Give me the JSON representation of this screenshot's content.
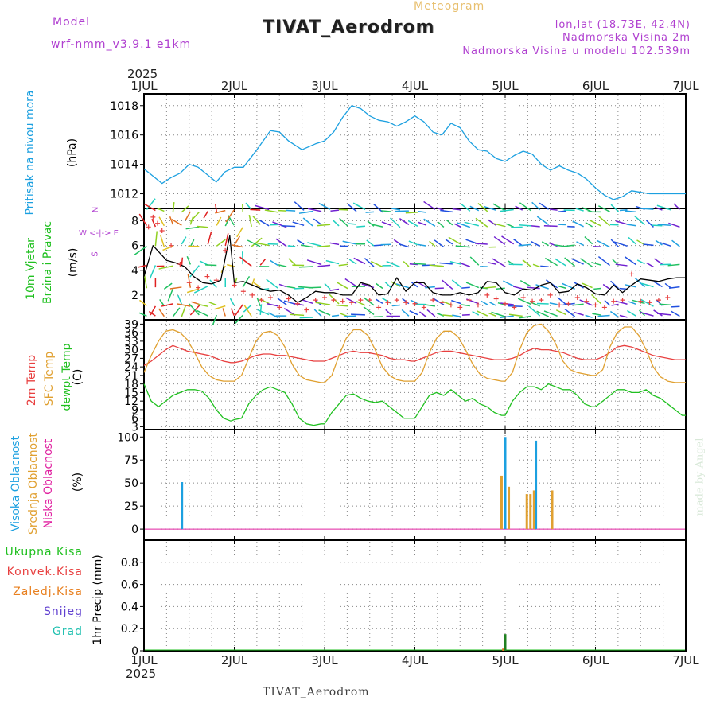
{
  "header": {
    "model_label": "Model",
    "model_name": "wrf-nmm_v3.9.1  e1km",
    "title": "TIVAT_Aerodrom",
    "meteogram": "Meteogram",
    "lonlat": "lon,lat (18.73E, 42.4N)",
    "elevation": "Nadmorska Visina 2m",
    "model_elevation": "Nadmorska Visina u modelu 102.539m",
    "year_top": "2025",
    "year_bottom": "2025",
    "footer": "TIVAT_Aerodrom",
    "credit": "made by Angel"
  },
  "colors": {
    "pressure": "#1ca0e0",
    "wind_label": "#20c020",
    "temp2m": "#e84040",
    "sfc": "#e0a030",
    "dewpt": "#20c020",
    "cloud_high": "#1ca0e0",
    "cloud_mid": "#e0a030",
    "cloud_low": "#e020a0",
    "purple": "#a040d0"
  },
  "chart_data": [
    {
      "type": "line",
      "panel": "pressure",
      "ylabel": "Pritisak na nivou mora",
      "unit": "(hPa)",
      "ylim": [
        1011,
        1018.8
      ],
      "yticks": [
        1012,
        1014,
        1016,
        1018
      ],
      "x_days": [
        0,
        0.1,
        0.2,
        0.3,
        0.4,
        0.5,
        0.6,
        0.7,
        0.8,
        0.9,
        1.0,
        1.1,
        1.25,
        1.4,
        1.5,
        1.6,
        1.75,
        1.9,
        2.0,
        2.1,
        2.2,
        2.3,
        2.4,
        2.5,
        2.6,
        2.7,
        2.8,
        2.9,
        3.0,
        3.1,
        3.2,
        3.3,
        3.4,
        3.5,
        3.6,
        3.7,
        3.8,
        3.9,
        4.0,
        4.1,
        4.2,
        4.3,
        4.4,
        4.5,
        4.6,
        4.7,
        4.8,
        4.9,
        5.0,
        5.1,
        5.2,
        5.3,
        5.4,
        5.5,
        5.6,
        5.7,
        5.8,
        5.9,
        6.0
      ],
      "values": [
        1013.7,
        1013.2,
        1012.7,
        1013.1,
        1013.4,
        1014.0,
        1013.8,
        1013.3,
        1012.8,
        1013.5,
        1013.8,
        1013.8,
        1015.0,
        1016.3,
        1016.2,
        1015.6,
        1015.0,
        1015.4,
        1015.6,
        1016.2,
        1017.2,
        1018.0,
        1017.8,
        1017.3,
        1017.0,
        1016.9,
        1016.6,
        1016.9,
        1017.3,
        1016.9,
        1016.2,
        1016.0,
        1016.8,
        1016.5,
        1015.6,
        1015.0,
        1014.9,
        1014.4,
        1014.2,
        1014.6,
        1014.9,
        1014.7,
        1014.0,
        1013.6,
        1013.9,
        1013.6,
        1013.4,
        1013.0,
        1012.4,
        1011.9,
        1011.6,
        1011.8,
        1012.2,
        1012.1,
        1012.0,
        1012.0,
        1012.0,
        1012.0,
        1012.0
      ]
    },
    {
      "type": "line",
      "panel": "wind",
      "ylabel": "10m Vjetar Brzina i Pravac",
      "ylabel_lines": [
        "10m Vjetar",
        "Brzina i Pravac"
      ],
      "unit": "(m/s)",
      "ylim": [
        0,
        9
      ],
      "yticks": [
        2,
        4,
        6,
        8
      ],
      "compass": "W <-|-> E",
      "compass_n": "N",
      "compass_s": "S",
      "x_days": [
        0,
        0.1,
        0.2,
        0.25,
        0.35,
        0.45,
        0.55,
        0.65,
        0.75,
        0.85,
        0.95,
        1.0,
        1.1,
        1.2,
        1.3,
        1.4,
        1.5,
        1.6,
        1.7,
        1.8,
        1.9,
        2.0,
        2.1,
        2.2,
        2.3,
        2.4,
        2.5,
        2.6,
        2.7,
        2.8,
        2.9,
        3.0,
        3.1,
        3.2,
        3.3,
        3.4,
        3.5,
        3.6,
        3.7,
        3.8,
        3.9,
        4.0,
        4.1,
        4.2,
        4.3,
        4.4,
        4.5,
        4.6,
        4.7,
        4.8,
        4.9,
        5.0,
        5.1,
        5.2,
        5.3,
        5.4,
        5.5,
        5.6,
        5.7,
        5.8,
        5.9,
        6.0
      ],
      "values": [
        3.5,
        6.0,
        5.2,
        4.8,
        4.6,
        4.3,
        3.5,
        3.0,
        2.9,
        3.2,
        6.8,
        3.0,
        3.1,
        2.8,
        2.5,
        2.3,
        2.4,
        2.0,
        1.4,
        1.8,
        2.3,
        2.2,
        2.2,
        2.0,
        2.0,
        3.0,
        2.8,
        2.0,
        2.1,
        3.4,
        2.3,
        3.0,
        3.0,
        2.2,
        2.0,
        2.0,
        2.2,
        2.0,
        2.2,
        3.1,
        3.0,
        2.2,
        2.0,
        2.5,
        2.4,
        2.8,
        3.0,
        2.2,
        2.3,
        2.9,
        2.6,
        2.1,
        2.0,
        2.8,
        2.2,
        2.8,
        3.3,
        3.2,
        3.1,
        3.3,
        3.4,
        3.4
      ],
      "gust_x": [
        0.05,
        0.1,
        0.15,
        0.2,
        0.3,
        0.4,
        0.5,
        0.6,
        0.7,
        0.8,
        0.9,
        1.0,
        1.1,
        1.2,
        1.3,
        1.4,
        1.5,
        1.6,
        1.7,
        1.8,
        1.9,
        2.0,
        2.1,
        2.2,
        2.3,
        2.4,
        2.5,
        2.6,
        2.7,
        2.8,
        2.9,
        3.0,
        3.1,
        3.2,
        3.3,
        3.4,
        3.5,
        3.6,
        3.7,
        3.8,
        3.9,
        4.0,
        4.1,
        4.2,
        4.3,
        4.4,
        4.5,
        4.6,
        4.7,
        4.8,
        4.9,
        5.0,
        5.1,
        5.2,
        5.3,
        5.4,
        5.5,
        5.6,
        5.7,
        5.8
      ],
      "gust_values": [
        7.5,
        8.3,
        7.8,
        7.2,
        6.0,
        4.5,
        3.0,
        2.6,
        3.5,
        3.2,
        5.6,
        2.8,
        2.3,
        2.0,
        1.6,
        1.8,
        1.0,
        1.7,
        1.3,
        0.8,
        1.6,
        1.8,
        1.6,
        1.5,
        1.4,
        1.6,
        1.6,
        1.0,
        1.4,
        1.6,
        1.4,
        1.3,
        1.0,
        1.6,
        1.4,
        1.2,
        1.0,
        1.6,
        1.2,
        2.0,
        1.7,
        1.3,
        1.0,
        1.8,
        1.5,
        1.6,
        2.0,
        1.2,
        1.3,
        1.8,
        1.5,
        1.2,
        1.0,
        1.5,
        1.6,
        3.7,
        1.5,
        1.4,
        1.6,
        1.8
      ]
    },
    {
      "type": "line",
      "panel": "temperature",
      "ylabel_lines": [
        "2m Temp",
        "SFC Temp",
        "dewpt Temp"
      ],
      "unit": "(C)",
      "ylim": [
        2,
        40.5
      ],
      "yticks": [
        3,
        6,
        9,
        12,
        15,
        18,
        21,
        24,
        27,
        30,
        33,
        36,
        39
      ],
      "x_days": [
        0,
        0.08,
        0.16,
        0.24,
        0.32,
        0.4,
        0.48,
        0.56,
        0.64,
        0.72,
        0.8,
        0.88,
        0.96,
        1.0,
        1.08,
        1.16,
        1.24,
        1.32,
        1.4,
        1.48,
        1.56,
        1.64,
        1.72,
        1.8,
        1.88,
        1.96,
        2.0,
        2.08,
        2.16,
        2.24,
        2.32,
        2.4,
        2.48,
        2.56,
        2.64,
        2.72,
        2.8,
        2.88,
        2.96,
        3.0,
        3.08,
        3.16,
        3.24,
        3.32,
        3.4,
        3.48,
        3.56,
        3.64,
        3.72,
        3.8,
        3.88,
        3.96,
        4.0,
        4.08,
        4.16,
        4.24,
        4.32,
        4.4,
        4.48,
        4.56,
        4.64,
        4.72,
        4.8,
        4.88,
        4.96,
        5.0,
        5.08,
        5.16,
        5.24,
        5.32,
        5.4,
        5.48,
        5.56,
        5.64,
        5.72,
        5.8,
        5.88,
        5.96,
        6.0
      ],
      "series": [
        {
          "name": "2m Temp",
          "values": [
            24.5,
            26,
            28,
            30,
            31.5,
            30.5,
            29.5,
            29,
            28.5,
            28,
            27,
            26,
            25.5,
            25.5,
            26,
            27,
            28,
            28.5,
            28.5,
            28,
            28,
            27.5,
            27,
            26.5,
            26,
            26,
            26,
            27,
            28,
            29,
            29.5,
            29,
            29,
            28.5,
            28,
            27,
            26.5,
            26.5,
            26,
            26,
            27,
            28,
            29,
            29.5,
            29.5,
            29,
            28.5,
            28,
            27.5,
            27,
            26.5,
            26.5,
            26.5,
            27,
            28,
            29.5,
            30.5,
            30,
            30,
            29.5,
            29,
            28,
            27,
            26.5,
            26.5,
            26.5,
            27.5,
            29,
            31,
            31.5,
            31,
            30,
            29,
            28,
            27.5,
            27,
            26.5,
            26.5,
            26.5
          ]
        },
        {
          "name": "SFC Temp",
          "values": [
            22,
            28,
            33,
            36.5,
            37,
            36,
            33.5,
            29,
            24,
            21,
            19.5,
            19,
            19,
            19,
            21,
            27,
            33,
            36,
            36.5,
            35,
            31,
            25,
            21,
            19.5,
            19,
            18.5,
            18.5,
            21,
            28,
            34,
            37,
            37,
            35,
            30,
            24,
            21,
            19.5,
            19,
            19,
            19,
            22,
            29,
            34,
            36.5,
            36.5,
            34.5,
            30,
            25,
            21.5,
            20,
            19.5,
            19,
            19,
            22,
            30,
            36,
            38.5,
            39,
            36.5,
            32,
            26,
            23,
            22,
            21.5,
            21,
            21,
            23,
            31,
            36,
            38,
            38,
            35,
            30,
            24,
            20.5,
            19,
            18.5,
            18.5,
            18.5
          ]
        },
        {
          "name": "dewpt Temp",
          "values": [
            18,
            12,
            10,
            12,
            14,
            15,
            16,
            16,
            15.5,
            13,
            9,
            6,
            5,
            5.5,
            6,
            11,
            14,
            16,
            17,
            16,
            15,
            11,
            6,
            4,
            3.5,
            4,
            4,
            8,
            11,
            14,
            14.5,
            13,
            12,
            11.5,
            12,
            10,
            8,
            6,
            6,
            6,
            10,
            14,
            15,
            14,
            16,
            14,
            12,
            13,
            11,
            10,
            8,
            7,
            7,
            12,
            15,
            17,
            17,
            16,
            18,
            17,
            16,
            16,
            14,
            11,
            10,
            10,
            12,
            14,
            16,
            16,
            15,
            15,
            16,
            14,
            13,
            11,
            9,
            7,
            7
          ]
        }
      ]
    },
    {
      "type": "bar",
      "panel": "clouds",
      "ylabel_lines": [
        "Visoka Oblacnost",
        "Srednja Oblacnost",
        "Niska Oblacnost"
      ],
      "unit": "(%)",
      "ylim": [
        -12,
        108
      ],
      "yticks": [
        0,
        25,
        50,
        75,
        100
      ],
      "series": [
        {
          "name": "Visoka Oblacnost",
          "x_days": [
            0.42,
            4.0,
            4.34
          ],
          "values": [
            51,
            100,
            96
          ]
        },
        {
          "name": "Srednja Oblacnost",
          "x_days": [
            3.96,
            4.04,
            4.24,
            4.28,
            4.32,
            4.52
          ],
          "values": [
            58,
            46,
            38,
            38,
            42,
            42
          ]
        }
      ]
    },
    {
      "type": "bar",
      "panel": "precip",
      "ylabel": "1hr Precip (mm)",
      "legend": [
        "Ukupna Kisa",
        "Konvek.Kisa",
        "Zaledj.Kisa",
        "Snijeg",
        "Grad"
      ],
      "legend_colors": [
        "#20c020",
        "#e84040",
        "#e88020",
        "#6040d0",
        "#20c0b0"
      ],
      "ylim": [
        0,
        1.0
      ],
      "yticks": [
        0,
        0.2,
        0.4,
        0.6,
        0.8
      ],
      "x_days": [
        3.98,
        4.0
      ],
      "values": [
        0.02,
        0.15
      ]
    }
  ],
  "x_axis": {
    "ticks": [
      "1JUL",
      "2JUL",
      "3JUL",
      "4JUL",
      "5JUL",
      "6JUL",
      "7JUL"
    ]
  }
}
